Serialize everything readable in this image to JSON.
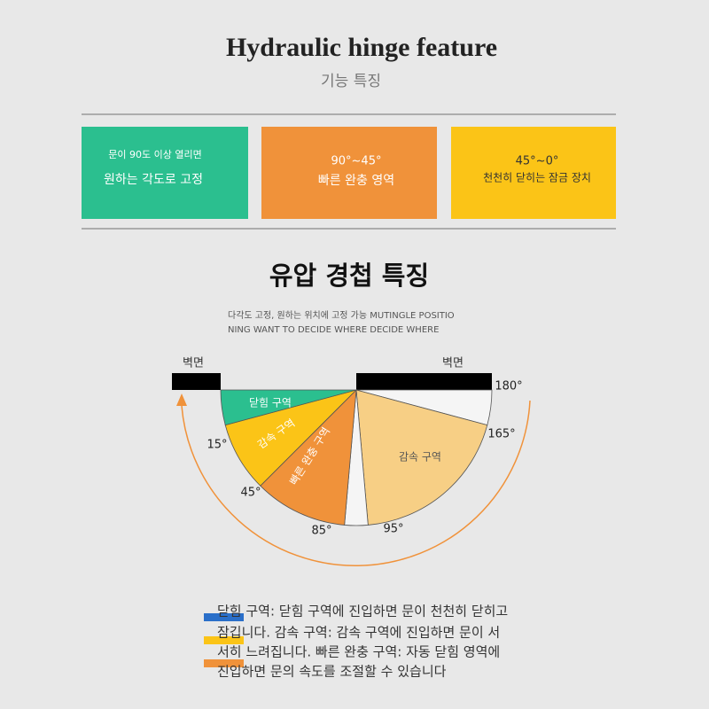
{
  "header": {
    "title": "Hydraulic hinge feature",
    "subtitle": "기능 특징"
  },
  "features": [
    {
      "lines": [
        "문이 90도 이상 열리면",
        "원하는 각도로 고정"
      ]
    },
    {
      "lines": [
        "90°~45°",
        "빠른 완충 영역"
      ]
    },
    {
      "lines": [
        "45°~0°",
        "천천히 닫히는 잠금 장치"
      ]
    }
  ],
  "section": {
    "title": "유압 경첩 특징",
    "description": [
      "다각도 고정, 원하는 위치에 고정 가능 MUTINGLE POSITIO",
      "NING WANT TO DECIDE WHERE DECIDE WHERE"
    ]
  },
  "diagram": {
    "walls": [
      "벽면",
      "벽면"
    ],
    "zones": [
      "닫힘 구역",
      "감속 구역",
      "빠른 완충 구역",
      "감속 구역"
    ],
    "angles": [
      "15°",
      "45°",
      "85°",
      "95°",
      "165°",
      "180°"
    ]
  },
  "notes": [
    "닫힘 구역: 닫힘 구역에 진입하면 문이 천천히 닫히고",
    "잠깁니다. 감속 구역: 감속 구역에 진입하면 문이 서",
    "서히 느려집니다. 빠른 완충 구역: 자동 닫힘 영역에",
    "진입하면 문의 속도를 조절할 수 있습니다"
  ]
}
